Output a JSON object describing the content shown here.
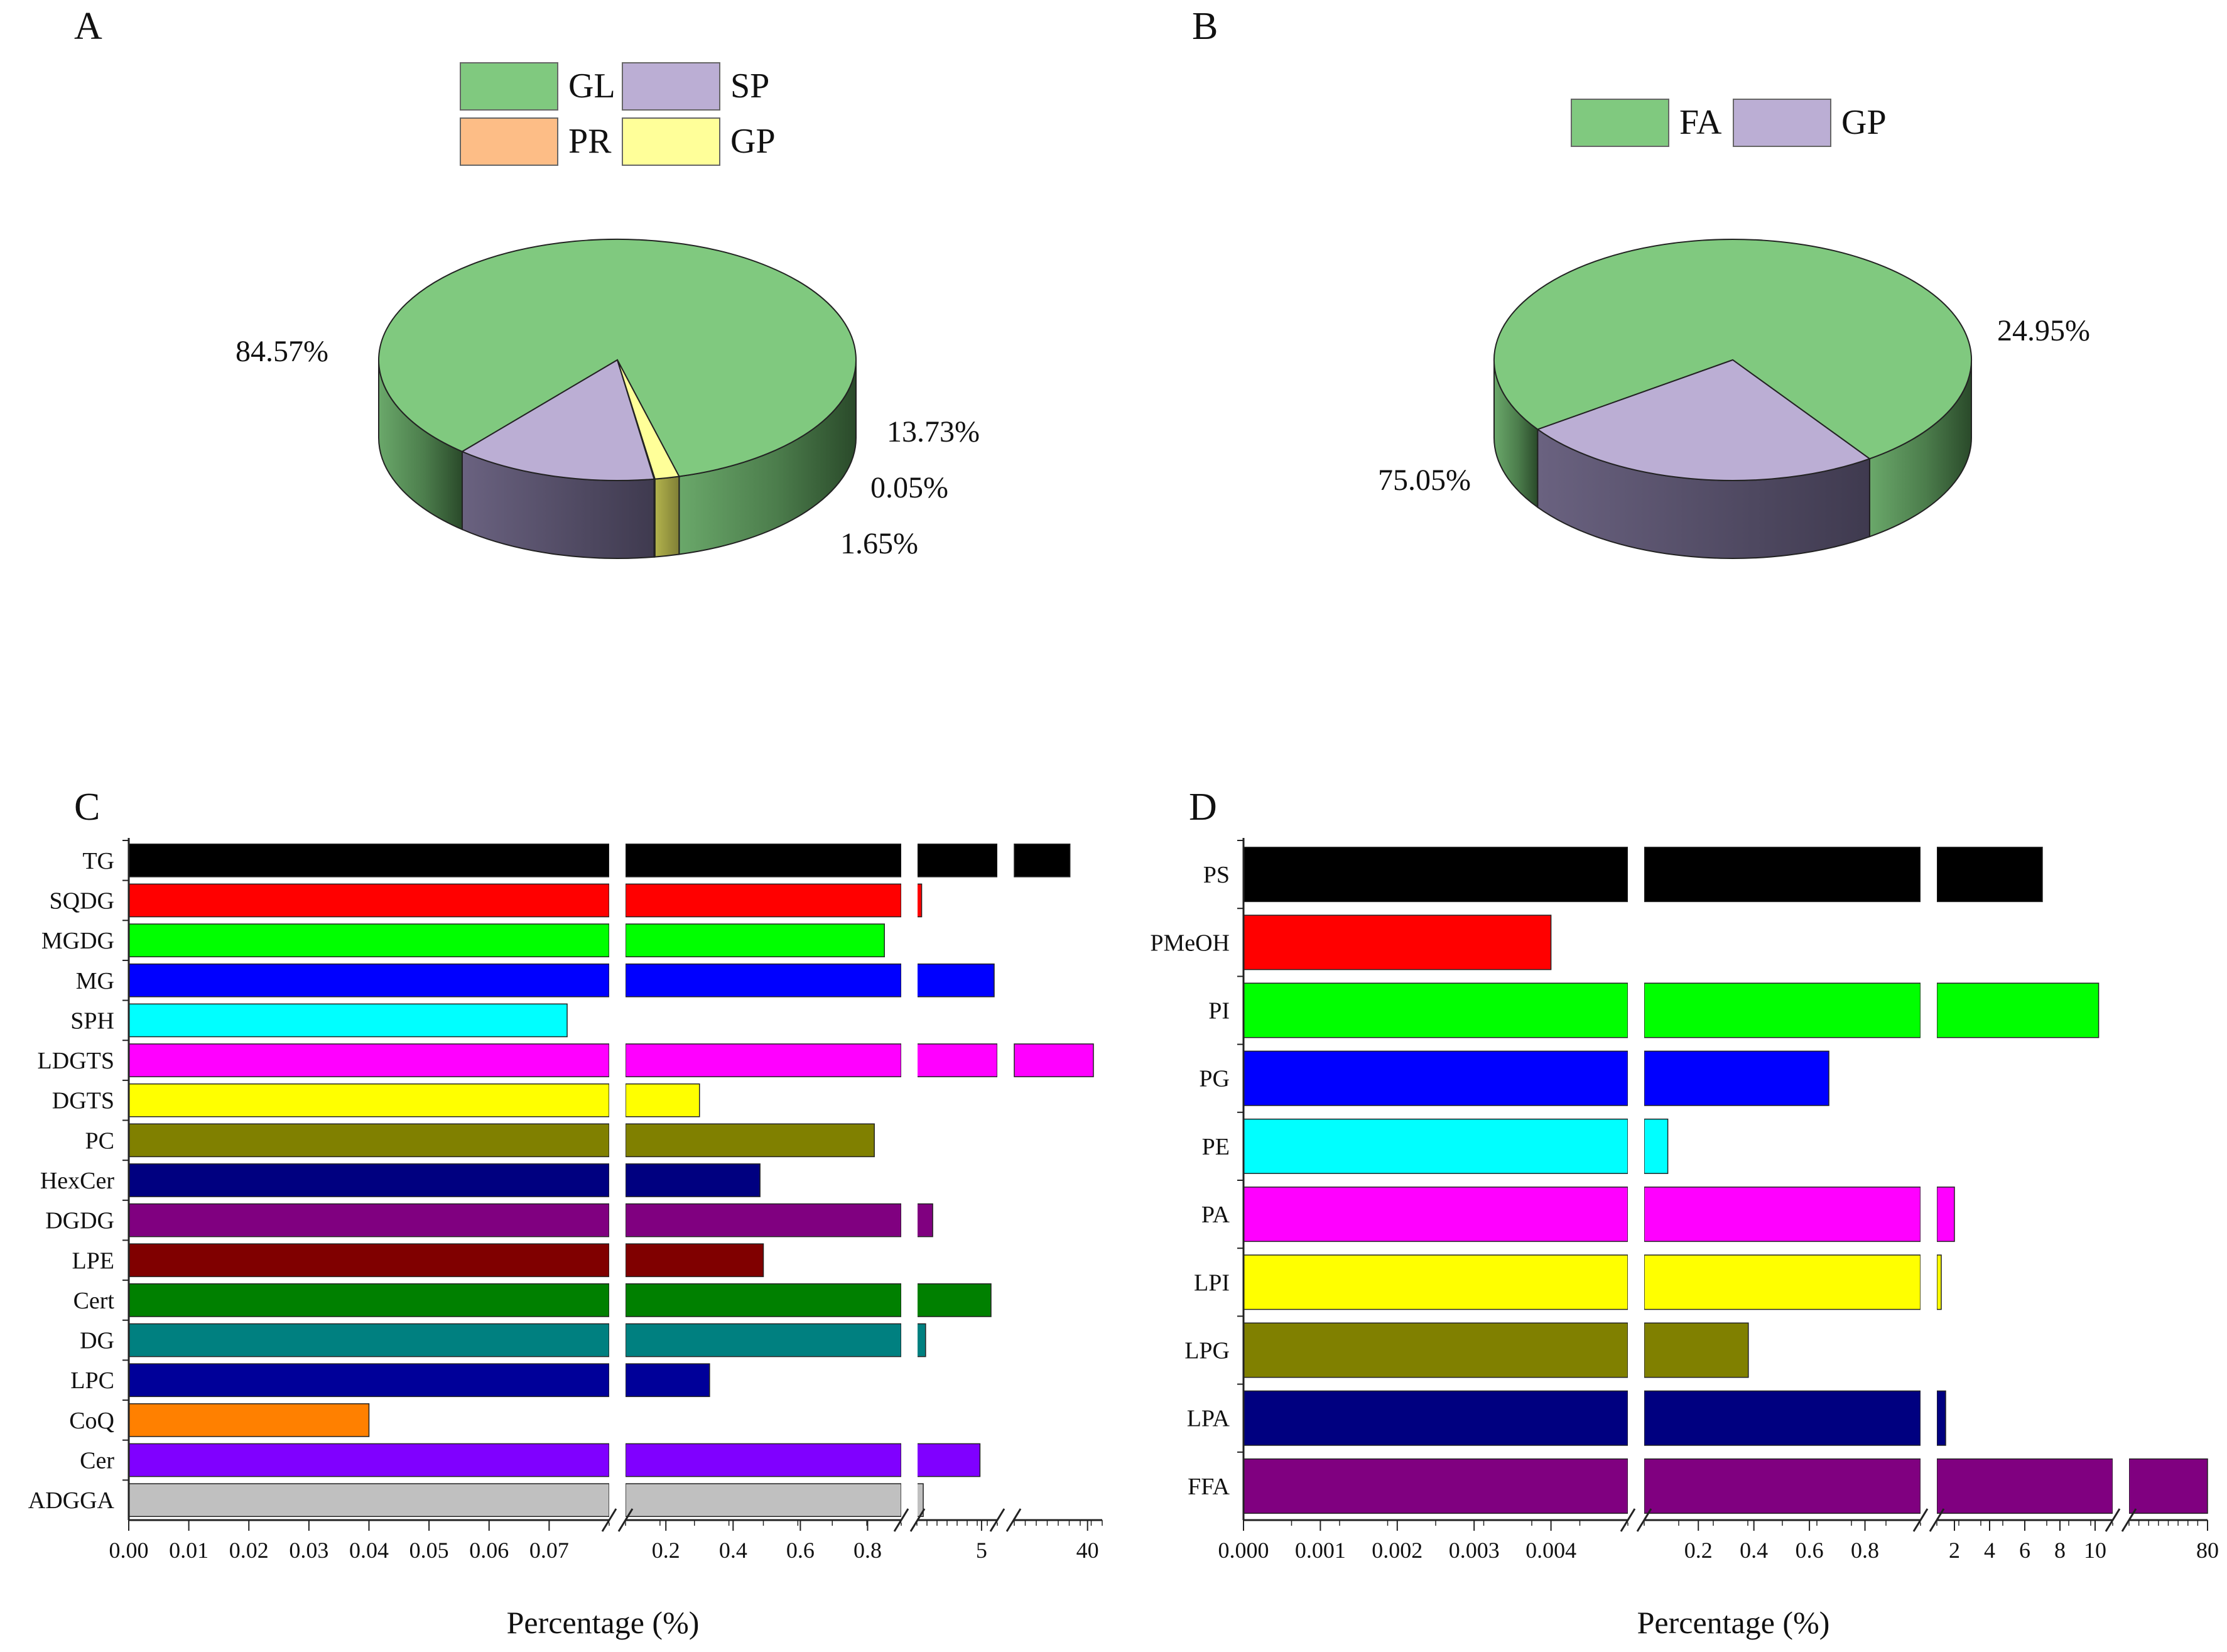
{
  "chart_data": [
    {
      "panel": "A",
      "type": "pie",
      "style": "3d",
      "legend": [
        {
          "label": "GL",
          "color": "#80c97f"
        },
        {
          "label": "SP",
          "color": "#bbaed4"
        },
        {
          "label": "PR",
          "color": "#fdbd86"
        },
        {
          "label": "GP",
          "color": "#ffff99"
        }
      ],
      "slices": [
        {
          "label": "GL",
          "value": 84.57,
          "text": "84.57%"
        },
        {
          "label": "SP",
          "value": 13.73,
          "text": "13.73%"
        },
        {
          "label": "PR",
          "value": 0.05,
          "text": "0.05%"
        },
        {
          "label": "GP",
          "value": 1.65,
          "text": "1.65%"
        }
      ]
    },
    {
      "panel": "B",
      "type": "pie",
      "style": "3d",
      "legend": [
        {
          "label": "FA",
          "color": "#80c97f"
        },
        {
          "label": "GP",
          "color": "#bbaed4"
        }
      ],
      "slices": [
        {
          "label": "FA",
          "value": 75.05,
          "text": "75.05%"
        },
        {
          "label": "GP",
          "value": 24.95,
          "text": "24.95%"
        }
      ]
    },
    {
      "panel": "C",
      "type": "bar",
      "orientation": "horizontal",
      "xlabel": "Percentage (%)",
      "axis_segments": [
        {
          "range": [
            0,
            0.08
          ],
          "ticks": [
            "0.00",
            "0.01",
            "0.02",
            "0.03",
            "0.04",
            "0.05",
            "0.06",
            "0.07"
          ],
          "tick_values": [
            0,
            0.01,
            0.02,
            0.03,
            0.04,
            0.05,
            0.06,
            0.07
          ]
        },
        {
          "range": [
            0.08,
            0.9
          ],
          "ticks": [
            "0.2",
            "0.4",
            "0.6",
            "0.8"
          ],
          "tick_values": [
            0.2,
            0.4,
            0.6,
            0.8
          ]
        },
        {
          "range": [
            0.9,
            6
          ],
          "ticks": [
            "5"
          ],
          "tick_values": [
            5
          ]
        },
        {
          "range": [
            15,
            45
          ],
          "ticks": [
            "40"
          ],
          "tick_values": [
            40
          ]
        }
      ],
      "categories": [
        "TG",
        "SQDG",
        "MGDG",
        "MG",
        "SPH",
        "LDGTS",
        "DGTS",
        "PC",
        "HexCer",
        "DGDG",
        "LPE",
        "Cert",
        "DG",
        "LPC",
        "CoQ",
        "Cer",
        "ADGGA"
      ],
      "values": [
        34,
        1.2,
        0.85,
        5.8,
        0.073,
        42,
        0.3,
        0.82,
        0.48,
        1.9,
        0.49,
        5.6,
        1.45,
        0.33,
        0.04,
        4.9,
        1.3
      ],
      "colors": [
        "#000000",
        "#ff0000",
        "#00ff00",
        "#0000ff",
        "#00ffff",
        "#ff00ff",
        "#ffff00",
        "#808000",
        "#000080",
        "#800080",
        "#800000",
        "#008000",
        "#008080",
        "#000099",
        "#ff8000",
        "#8000ff",
        "#c0c0c0"
      ]
    },
    {
      "panel": "D",
      "type": "bar",
      "orientation": "horizontal",
      "xlabel": "Percentage (%)",
      "axis_segments": [
        {
          "range": [
            0,
            0.005
          ],
          "ticks": [
            "0.000",
            "0.001",
            "0.002",
            "0.003",
            "0.004"
          ],
          "tick_values": [
            0,
            0.001,
            0.002,
            0.003,
            0.004
          ]
        },
        {
          "range": [
            0.005,
            1
          ],
          "ticks": [
            "0.2",
            "0.4",
            "0.6",
            "0.8"
          ],
          "tick_values": [
            0.2,
            0.4,
            0.6,
            0.8
          ]
        },
        {
          "range": [
            1,
            11
          ],
          "ticks": [
            "2",
            "4",
            "6",
            "8",
            "10"
          ],
          "tick_values": [
            2,
            4,
            6,
            8,
            10
          ]
        },
        {
          "range": [
            60,
            80
          ],
          "ticks": [
            "80"
          ],
          "tick_values": [
            80
          ]
        }
      ],
      "categories": [
        "PS",
        "PMeOH",
        "PI",
        "PG",
        "PE",
        "PA",
        "LPI",
        "LPG",
        "LPA",
        "FFA"
      ],
      "values": [
        7,
        0.004,
        10.2,
        0.67,
        0.09,
        2,
        1.25,
        0.38,
        1.5,
        80
      ],
      "colors": [
        "#000000",
        "#ff0000",
        "#00ff00",
        "#0000ff",
        "#00ffff",
        "#ff00ff",
        "#ffff00",
        "#808000",
        "#000080",
        "#800080"
      ]
    }
  ]
}
